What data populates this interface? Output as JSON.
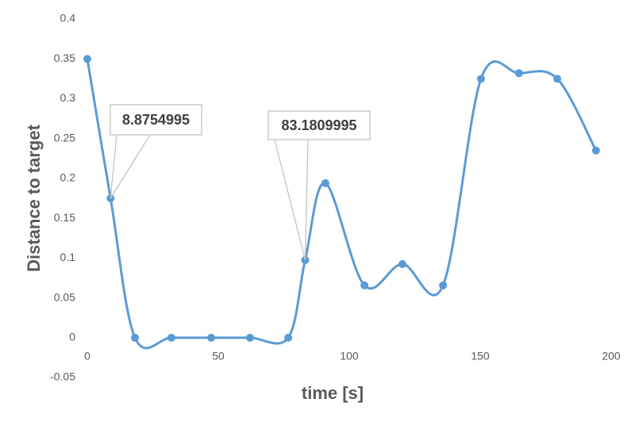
{
  "chart_data": {
    "type": "line",
    "x_label": "time [s]",
    "y_label": "Distance to target",
    "x": [
      0,
      8.8754995,
      18.2,
      32.1,
      47.3,
      62.1,
      76.7,
      83.1809995,
      90.9,
      105.8,
      120.3,
      135.8,
      150.3,
      164.8,
      179.4,
      194.2
    ],
    "series": [
      {
        "color": "#5b9bd5",
        "values": [
          0.35,
          0.175,
          0,
          0,
          0,
          0,
          0,
          0.0975,
          0.194,
          0.0657,
          0.0925,
          0.0657,
          0.325,
          0.332,
          0.325,
          0.235
        ]
      }
    ],
    "annotated_points": [
      1,
      7
    ],
    "smooth": true,
    "xlim": [
      0,
      200
    ],
    "xticks": [
      0,
      50,
      100,
      150,
      200
    ],
    "ylim": [
      -0.05,
      0.4
    ],
    "yticks": [
      -0.05,
      0,
      0.05,
      0.1,
      0.15,
      0.2,
      0.25,
      0.3,
      0.35,
      0.4
    ],
    "grid": false
  }
}
